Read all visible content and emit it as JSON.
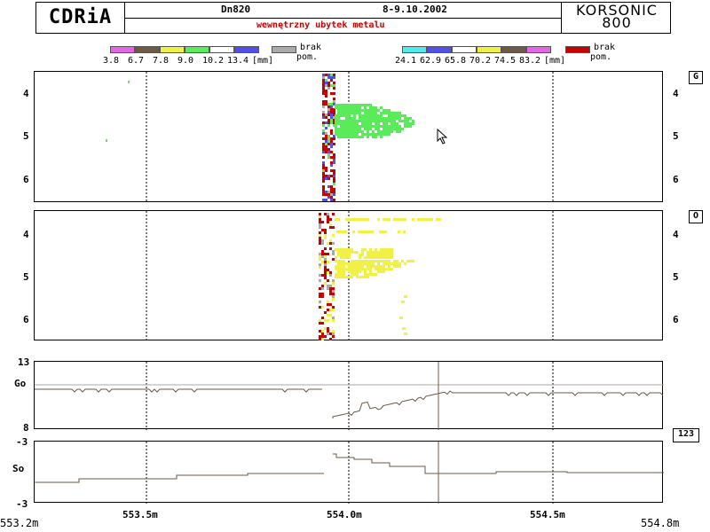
{
  "header": {
    "logo": "CDRiA",
    "pipe": "Dn820",
    "date": "8-9.10.2002",
    "defect": "wewnętrzny ubytek metalu",
    "brand_line1": "KORSONIC",
    "brand_line2": "800"
  },
  "legend_left": {
    "colors": [
      "#e664e6",
      "#6e5a46",
      "#f0f046",
      "#5aeb5a",
      "#ffffff",
      "#5050eb"
    ],
    "labels": [
      "3.8",
      "6.7",
      "7.8",
      "9.0",
      "10.2",
      "13.4"
    ],
    "unit": "[mm]",
    "nodata_color": "#aaaaaa",
    "nodata_label1": "brak",
    "nodata_label2": "pom."
  },
  "legend_right": {
    "colors": [
      "#50ebeb",
      "#5050eb",
      "#ffffff",
      "#f0f046",
      "#6e5a46",
      "#e664e6"
    ],
    "labels": [
      "24.1",
      "62.9",
      "65.8",
      "70.2",
      "74.5",
      "83.2"
    ],
    "unit": "[mm]",
    "nodata_color": "#c80000",
    "nodata_label1": "brak",
    "nodata_label2": "pom."
  },
  "panel_g": {
    "tag": "G",
    "ticks": [
      "4",
      "5",
      "6"
    ]
  },
  "panel_o": {
    "tag": "O",
    "ticks": [
      "4",
      "5",
      "6"
    ]
  },
  "panel_go": {
    "label": "Go",
    "top": "13",
    "bottom": "8"
  },
  "panel_so": {
    "label": "So",
    "top": "-3",
    "bottom": "-3",
    "tag": "123"
  },
  "x_axis": {
    "start": "553.2m",
    "ticks": [
      "553.5m",
      "554.0m",
      "554.5m"
    ],
    "end": "554.8m"
  }
}
